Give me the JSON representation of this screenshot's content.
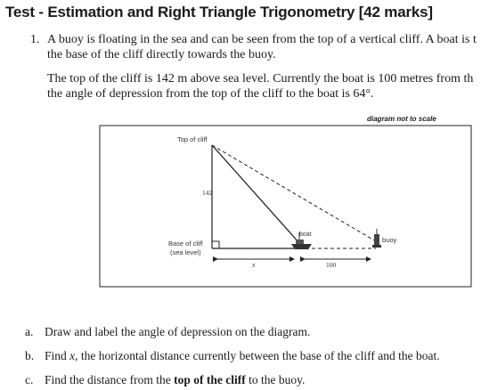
{
  "title": "Test - Estimation and Right Triangle Trigonometry [42 marks]",
  "question": {
    "number": "1.",
    "line1": "A buoy is floating in the sea and can be seen from the top of a vertical cliff. A boat is t",
    "line2": "the base of the cliff directly towards the buoy.",
    "line3": "The top of the cliff is 142 m above sea level. Currently the boat is 100 metres from th",
    "line4": "the angle of depression from the top of the cliff to the boat is 64°."
  },
  "diagram": {
    "note": "diagram not to scale",
    "top_label": "Top of cliff",
    "height_label": "142",
    "base_label_1": "Base of cliff",
    "base_label_2": "(sea level)",
    "boat_label": "boat",
    "buoy_label": "buoy",
    "x_label": "x",
    "distance_label": "100"
  },
  "parts": [
    {
      "letter": "a.",
      "text": "Draw and label the angle of depression on the diagram."
    },
    {
      "letter": "b.",
      "text_before": "Find ",
      "variable": "x",
      "text_after": ", the horizontal distance currently between the base of the cliff and the boat."
    },
    {
      "letter": "c.",
      "text_before": "Find the distance from the ",
      "emphasis": "top of the cliff",
      "text_after": " to the buoy."
    }
  ]
}
